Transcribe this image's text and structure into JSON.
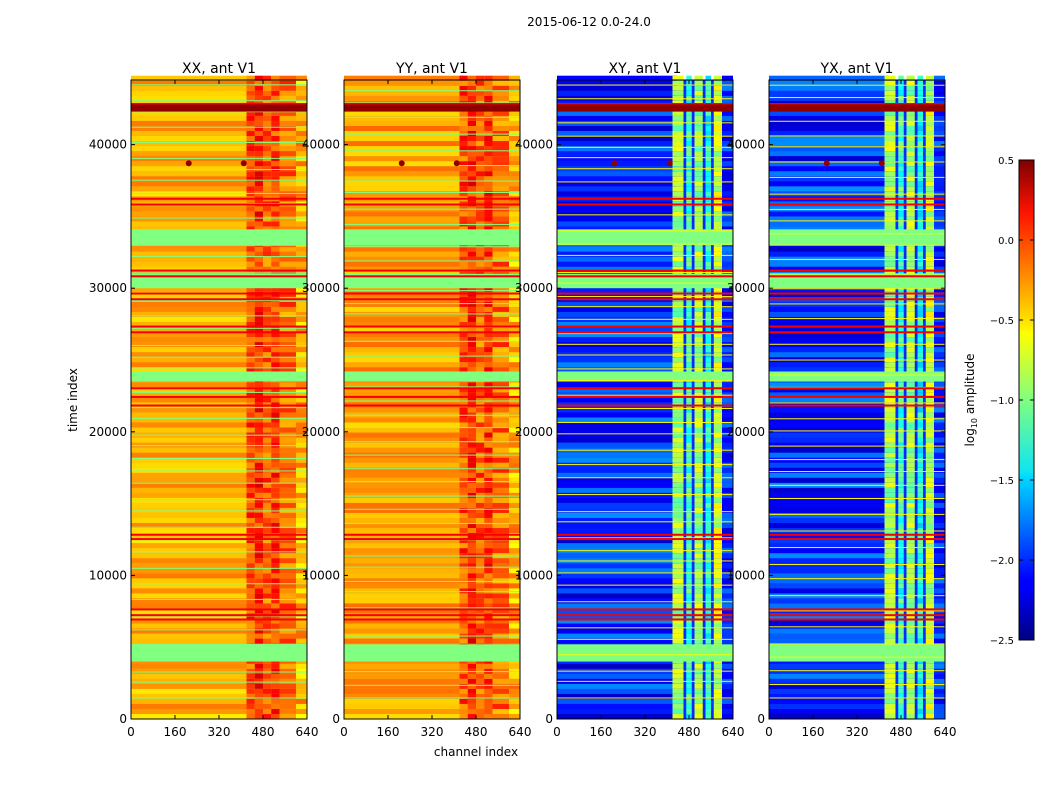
{
  "figure": {
    "suptitle": "2015-06-12 0.0-24.0",
    "xlabel": "channel index",
    "ylabel": "time index"
  },
  "colorbar": {
    "label_prefix": "log",
    "label_sub": "10",
    "label_suffix": " amplitude",
    "ticks": [
      0.5,
      0.0,
      -0.5,
      -1.0,
      -1.5,
      -2.0,
      -2.5
    ],
    "tick_labels": [
      "0.5",
      "0.0",
      "−0.5",
      "−1.0",
      "−1.5",
      "−2.0",
      "−2.5"
    ],
    "range": [
      -2.5,
      0.5
    ],
    "colormap": "jet"
  },
  "chart_data": [
    {
      "type": "heatmap",
      "title": "XX, ant V1",
      "xlim": [
        0,
        640
      ],
      "ylim": [
        0,
        44500
      ],
      "xticks": [
        0,
        160,
        320,
        480,
        640
      ],
      "xtick_labels": [
        "0",
        "160",
        "320",
        "480",
        "640"
      ],
      "yticks": [
        0,
        10000,
        20000,
        30000,
        40000
      ],
      "ytick_labels": [
        "0",
        "10000",
        "20000",
        "30000",
        "40000"
      ],
      "base_value": -0.4
    },
    {
      "type": "heatmap",
      "title": "YY, ant V1",
      "xlim": [
        0,
        640
      ],
      "ylim": [
        0,
        44500
      ],
      "xticks": [
        0,
        160,
        320,
        480,
        640
      ],
      "xtick_labels": [
        "0",
        "160",
        "320",
        "480",
        "640"
      ],
      "yticks": [
        0,
        10000,
        20000,
        30000,
        40000
      ],
      "ytick_labels": [
        "0",
        "10000",
        "20000",
        "30000",
        "40000"
      ],
      "base_value": -0.35
    },
    {
      "type": "heatmap",
      "title": "XY, ant V1",
      "xlim": [
        0,
        640
      ],
      "ylim": [
        0,
        44500
      ],
      "xticks": [
        0,
        160,
        320,
        480,
        640
      ],
      "xtick_labels": [
        "0",
        "160",
        "320",
        "480",
        "640"
      ],
      "yticks": [
        0,
        10000,
        20000,
        30000,
        40000
      ],
      "ytick_labels": [
        "0",
        "10000",
        "20000",
        "30000",
        "40000"
      ],
      "base_value": -2.0
    },
    {
      "type": "heatmap",
      "title": "YX, ant V1",
      "xlim": [
        0,
        640
      ],
      "ylim": [
        0,
        44500
      ],
      "xticks": [
        0,
        160,
        320,
        480,
        640
      ],
      "xtick_labels": [
        "0",
        "160",
        "320",
        "480",
        "640"
      ],
      "yticks": [
        0,
        10000,
        20000,
        30000,
        40000
      ],
      "ytick_labels": [
        "0",
        "10000",
        "20000",
        "30000",
        "40000"
      ],
      "base_value": -2.0
    }
  ]
}
